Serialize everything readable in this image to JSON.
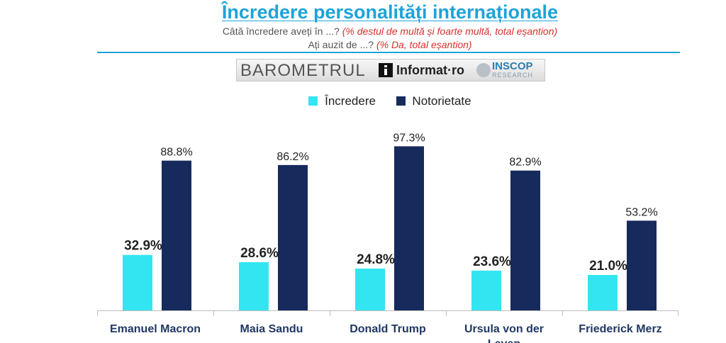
{
  "header": {
    "title": "Încredere personalități internaționale",
    "subtitle1_text": "Câtă încredere aveți în ...?",
    "subtitle1_note": "(% destul de multă și foarte multă,  total eșantion)",
    "subtitle2_text": "Ați auzit de ...?",
    "subtitle2_note": "(% Da, total eșantion)"
  },
  "banner": {
    "barometrul": "BAROMETRUL",
    "informat": "Informat·ro",
    "inscop": "INSCOP",
    "research": "RESEARCH"
  },
  "legend": {
    "items": [
      {
        "label": "Încredere",
        "color": "#33e5f0"
      },
      {
        "label": "Notorietate",
        "color": "#162a5c"
      }
    ]
  },
  "chart_data": {
    "type": "bar",
    "categories": [
      "Emanuel Macron",
      "Maia Sandu",
      "Donald Trump",
      "Ursula von der Leyen",
      "Friederick Merz"
    ],
    "series": [
      {
        "name": "Încredere",
        "values": [
          32.9,
          28.6,
          24.8,
          23.6,
          21.0
        ],
        "labels": [
          "32.9%",
          "28.6%",
          "24.8%",
          "23.6%",
          "21.0%"
        ],
        "color": "#33e5f0"
      },
      {
        "name": "Notorietate",
        "values": [
          88.8,
          86.2,
          97.3,
          82.9,
          53.2
        ],
        "labels": [
          "88.8%",
          "86.2%",
          "97.3%",
          "82.9%",
          "53.2%"
        ],
        "color": "#162a5c"
      }
    ],
    "ylim": [
      0,
      100
    ],
    "grid": false,
    "legend_position": "top"
  }
}
